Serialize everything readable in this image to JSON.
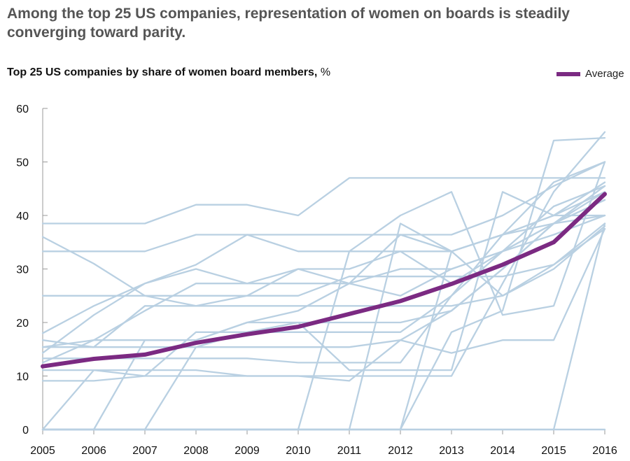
{
  "headline": "Among the top 25 US companies, representation of women on boards is steadily converging toward parity.",
  "chart_data": {
    "type": "line",
    "title": "Top 25 US companies by share of women board members,",
    "unit": "%",
    "x": [
      2005,
      2006,
      2007,
      2008,
      2009,
      2010,
      2011,
      2012,
      2013,
      2014,
      2015,
      2016
    ],
    "ylim": [
      0,
      60
    ],
    "yticks": [
      0,
      10,
      20,
      30,
      40,
      50,
      60
    ],
    "grid": false,
    "legend_position": "top-right",
    "colors": {
      "average": "#7b2a82",
      "companies": "#b9d0e2"
    },
    "average": {
      "name": "Average",
      "values": [
        11.8,
        13.2,
        14.0,
        16.2,
        17.8,
        19.2,
        21.6,
        24.0,
        27.2,
        30.8,
        35.0,
        44.0
      ]
    },
    "companies": [
      [
        38.5,
        38.5,
        38.5,
        42.0,
        42.0,
        40.0,
        47.0,
        47.0,
        47.0,
        47.0,
        47.0,
        47.0
      ],
      [
        33.3,
        33.3,
        33.3,
        36.4,
        36.4,
        36.4,
        36.4,
        36.4,
        36.4,
        40.0,
        45.5,
        50.0
      ],
      [
        36.0,
        31.0,
        25.0,
        23.1,
        23.1,
        23.1,
        23.1,
        23.1,
        23.1,
        25.0,
        30.0,
        38.0
      ],
      [
        25.0,
        25.0,
        25.0,
        25.0,
        25.0,
        25.0,
        28.6,
        28.6,
        28.6,
        28.6,
        30.8,
        38.5
      ],
      [
        18.0,
        23.1,
        27.3,
        30.8,
        36.4,
        33.3,
        33.3,
        40.0,
        44.4,
        21.4,
        23.1,
        50.0
      ],
      [
        14.3,
        21.4,
        27.3,
        30.0,
        27.3,
        30.0,
        27.3,
        30.0,
        30.0,
        33.3,
        38.5,
        45.5
      ],
      [
        12.5,
        16.7,
        22.2,
        27.3,
        27.3,
        27.3,
        27.3,
        25.0,
        30.0,
        33.3,
        36.4,
        40.0
      ],
      [
        16.7,
        15.4,
        23.1,
        23.1,
        25.0,
        30.0,
        30.0,
        33.3,
        27.3,
        33.3,
        38.5,
        42.9
      ],
      [
        15.4,
        16.7,
        16.7,
        16.7,
        20.0,
        22.2,
        27.3,
        36.4,
        33.3,
        36.4,
        40.0,
        46.2
      ],
      [
        15.4,
        15.4,
        15.4,
        15.4,
        15.4,
        15.4,
        15.4,
        16.7,
        14.3,
        16.7,
        16.7,
        37.5
      ],
      [
        13.3,
        13.3,
        13.3,
        13.3,
        13.3,
        12.5,
        12.5,
        12.5,
        25.0,
        33.3,
        41.7,
        45.5
      ],
      [
        9.1,
        9.1,
        10.0,
        10.0,
        10.0,
        10.0,
        9.1,
        16.7,
        22.2,
        30.0,
        38.5,
        44.4
      ],
      [
        11.1,
        11.1,
        11.1,
        11.1,
        10.0,
        10.0,
        10.0,
        10.0,
        10.0,
        27.3,
        44.4,
        55.6
      ],
      [
        0,
        0,
        0,
        15.4,
        18.2,
        20.0,
        20.0,
        20.0,
        22.2,
        30.0,
        38.5,
        42.9
      ],
      [
        0,
        0,
        0,
        0,
        0,
        0,
        0,
        0,
        33.3,
        36.4,
        38.5,
        40.0
      ],
      [
        0,
        0,
        0,
        0,
        0,
        0,
        0,
        0,
        0,
        0,
        0,
        38.5
      ],
      [
        0,
        0,
        0,
        0,
        0,
        0,
        0,
        38.5,
        33.3,
        36.4,
        40.0,
        44.4
      ],
      [
        0,
        11.1,
        10.0,
        18.2,
        18.2,
        18.2,
        18.2,
        18.2,
        25.0,
        36.4,
        46.2,
        50.0
      ],
      [
        0,
        0,
        16.7,
        16.7,
        20.0,
        20.0,
        11.1,
        11.1,
        11.1,
        44.4,
        40.0,
        40.0
      ],
      [
        0,
        0,
        0,
        0,
        0,
        0,
        33.3,
        33.3,
        33.3,
        25.0,
        30.8,
        37.5
      ],
      [
        0,
        0,
        0,
        0,
        0,
        0,
        0,
        0,
        18.2,
        22.2,
        54.0,
        54.5
      ],
      [
        0,
        0,
        0,
        0,
        0,
        0,
        0,
        0,
        0,
        0,
        0,
        0
      ],
      [
        0,
        0,
        0,
        0,
        0,
        0,
        0,
        0,
        0,
        0,
        0,
        0
      ]
    ]
  }
}
